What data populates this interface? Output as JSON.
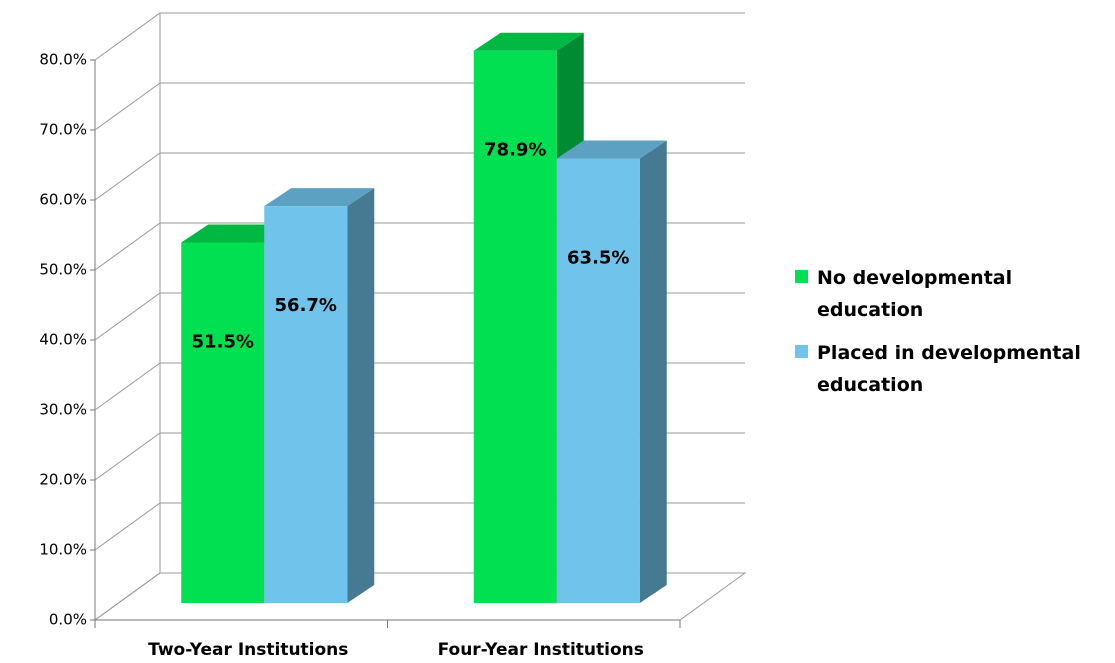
{
  "chart_data": {
    "type": "bar3d",
    "categories": [
      "Two-Year Institutions",
      "Four-Year Institutions"
    ],
    "series": [
      {
        "name": "No developmental education",
        "color": "#00e050",
        "values": [
          51.5,
          78.9
        ],
        "value_labels": [
          "51.5%",
          "78.9%"
        ]
      },
      {
        "name": "Placed in developmental education",
        "color": "#70c4ec",
        "values": [
          56.7,
          63.5
        ],
        "value_labels": [
          "56.7%",
          "63.5%"
        ]
      }
    ],
    "ylim": [
      0,
      80
    ],
    "yticks": [
      {
        "value": 0,
        "label": "0.0%"
      },
      {
        "value": 10,
        "label": "10.0%"
      },
      {
        "value": 20,
        "label": "20.0%"
      },
      {
        "value": 30,
        "label": "30.0%"
      },
      {
        "value": 40,
        "label": "40.0%"
      },
      {
        "value": 50,
        "label": "50.0%"
      },
      {
        "value": 60,
        "label": "60.0%"
      },
      {
        "value": 70,
        "label": "70.0%"
      },
      {
        "value": 80,
        "label": "80.0%"
      }
    ],
    "grid": true,
    "legend": "right"
  }
}
